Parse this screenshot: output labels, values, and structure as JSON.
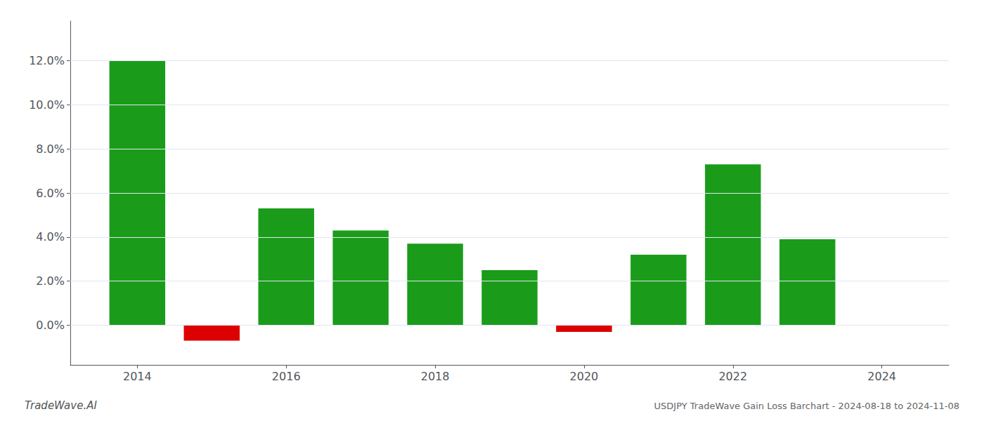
{
  "chart_data": {
    "type": "bar",
    "title": "USDJPY TradeWave Gain Loss Barchart - 2024-08-18 to 2024-11-08",
    "annotations": [
      "TradeWave.AI"
    ],
    "x": [
      2014,
      2015,
      2016,
      2017,
      2018,
      2019,
      2020,
      2021,
      2022,
      2023
    ],
    "values": [
      0.12,
      -0.007,
      0.053,
      0.043,
      0.037,
      0.025,
      -0.003,
      0.032,
      0.073,
      0.039
    ],
    "colors": [
      "#1a9c1a",
      "#dd0000",
      "#1a9c1a",
      "#1a9c1a",
      "#1a9c1a",
      "#1a9c1a",
      "#dd0000",
      "#1a9c1a",
      "#1a9c1a",
      "#1a9c1a"
    ],
    "xlim": [
      2013.1,
      2024.9
    ],
    "xticks": [
      2014,
      2016,
      2018,
      2020,
      2022,
      2024
    ],
    "ylim": [
      -0.018,
      0.138
    ],
    "yticks": [
      {
        "value": 0.0,
        "label": "0.0%"
      },
      {
        "value": 0.02,
        "label": "2.0%"
      },
      {
        "value": 0.04,
        "label": "4.0%"
      },
      {
        "value": 0.06,
        "label": "6.0%"
      },
      {
        "value": 0.08,
        "label": "8.0%"
      },
      {
        "value": 0.1,
        "label": "10.0%"
      },
      {
        "value": 0.12,
        "label": "12.0%"
      }
    ],
    "grid": true
  }
}
